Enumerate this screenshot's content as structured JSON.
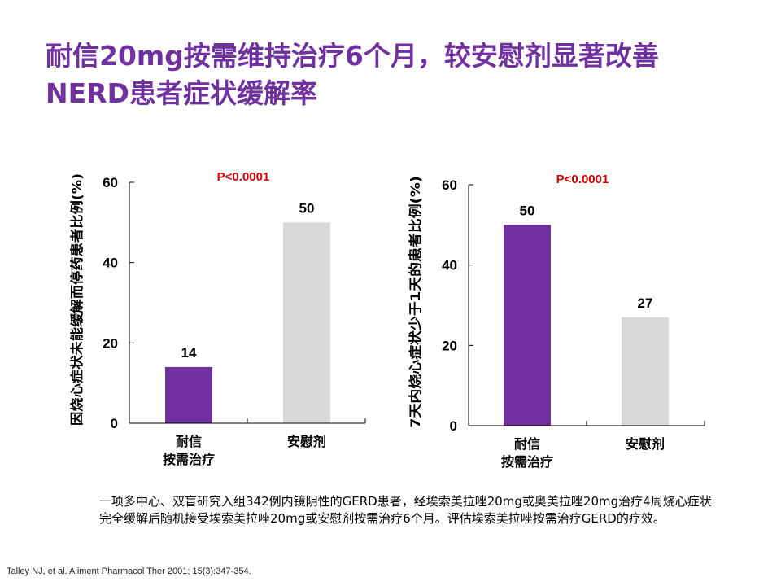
{
  "title": {
    "line1": "耐信20mg按需维持治疗6个月，较安慰剂显著改善",
    "line2": "NERD患者症状缓解率"
  },
  "colors": {
    "title": "#7030A0",
    "esomeprazole": "#7030A0",
    "placebo": "#D9D9D9",
    "pvalue": "#E00000"
  },
  "chart_data": [
    {
      "type": "bar",
      "ylabel": "因烧心症状未能缓解而停药患者比例(%)",
      "categories": [
        "耐信\n按需治疗",
        "安慰剂"
      ],
      "values": [
        14,
        50
      ],
      "data_labels": [
        "14",
        "50"
      ],
      "ylim": [
        0,
        60
      ],
      "yticks": [
        0,
        20,
        40,
        60
      ],
      "annotation": "P<0.0001",
      "grid": false,
      "legend": "none"
    },
    {
      "type": "bar",
      "ylabel": "7天内烧心症状少于1天的患者比例(%)",
      "categories": [
        "耐信\n按需治疗",
        "安慰剂"
      ],
      "values": [
        50,
        27
      ],
      "data_labels": [
        "50",
        "27"
      ],
      "ylim": [
        0,
        60
      ],
      "yticks": [
        0,
        20,
        40,
        60
      ],
      "annotation": "P<0.0001",
      "grid": false,
      "legend": "none"
    }
  ],
  "note": "一项多中心、双盲研究入组342例内镜阴性的GERD患者，经埃索美拉唑20mg或奥美拉唑20mg治疗4周烧心症状完全缓解后随机接受埃索美拉唑20mg或安慰剂按需治疗6个月。评估埃索美拉唑按需治疗GERD的疗效。",
  "reference": "Talley NJ, et al. Aliment Pharmacol Ther 2001; 15(3):347-354."
}
